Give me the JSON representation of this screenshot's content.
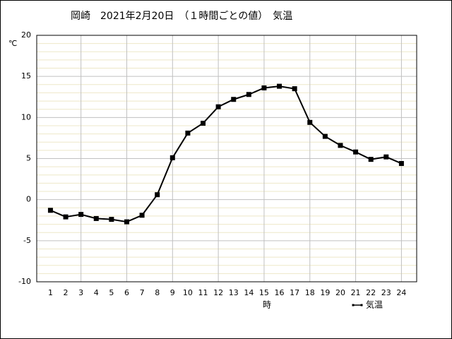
{
  "chart_data": {
    "type": "line",
    "title": "岡崎　2021年2月20日　（１時間ごとの値）　気温",
    "y_unit": "℃",
    "x_label": "時",
    "x": [
      1,
      2,
      3,
      4,
      5,
      6,
      7,
      8,
      9,
      10,
      11,
      12,
      13,
      14,
      15,
      16,
      17,
      18,
      19,
      20,
      21,
      22,
      23,
      24
    ],
    "series": [
      {
        "name": "気温",
        "color": "#000000",
        "values": [
          -1.3,
          -2.1,
          -1.8,
          -2.3,
          -2.4,
          -2.7,
          -1.9,
          0.6,
          5.1,
          8.1,
          9.3,
          11.3,
          12.2,
          12.8,
          13.6,
          13.8,
          13.5,
          9.4,
          7.7,
          6.6,
          5.8,
          4.9,
          5.2,
          4.4
        ]
      }
    ],
    "xlim": [
      0.1,
      25
    ],
    "xticks": [
      1,
      2,
      3,
      4,
      5,
      6,
      7,
      8,
      9,
      10,
      11,
      12,
      13,
      14,
      15,
      16,
      17,
      18,
      19,
      20,
      21,
      22,
      23,
      24
    ],
    "x_grid_every": 3,
    "ylim": [
      -10,
      20
    ],
    "yticks": [
      -10,
      -5,
      0,
      5,
      10,
      15,
      20
    ],
    "grid": true,
    "minor_grid": true,
    "legend": "bottom-right"
  }
}
